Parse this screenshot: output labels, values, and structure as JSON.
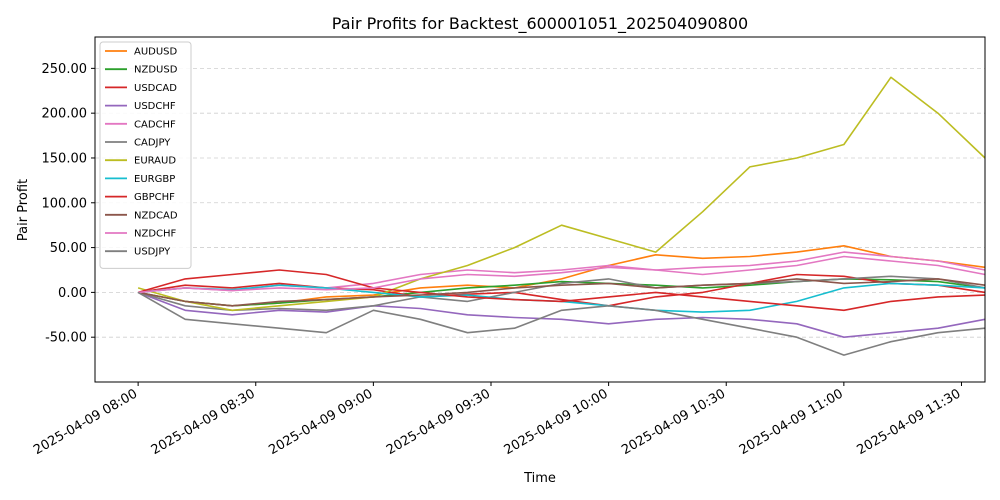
{
  "chart_data": {
    "type": "line",
    "title": "Pair Profits for Backtest_600001051_202504090800",
    "xlabel": "Time",
    "ylabel": "Pair Profit",
    "x_start": "2025-04-09 08:00",
    "x_end": "2025-04-09 11:36",
    "x_step_minutes": 12,
    "xlim_minutes": [
      -11,
      216
    ],
    "ylim": [
      -100,
      285
    ],
    "grid": "horizontal dashed",
    "legend_position": "top-left",
    "x_ticks": [
      {
        "minutes": 0,
        "label": "2025-04-09 08:00"
      },
      {
        "minutes": 30,
        "label": "2025-04-09 08:30"
      },
      {
        "minutes": 60,
        "label": "2025-04-09 09:00"
      },
      {
        "minutes": 90,
        "label": "2025-04-09 09:30"
      },
      {
        "minutes": 120,
        "label": "2025-04-09 10:00"
      },
      {
        "minutes": 150,
        "label": "2025-04-09 10:30"
      },
      {
        "minutes": 180,
        "label": "2025-04-09 11:00"
      },
      {
        "minutes": 210,
        "label": "2025-04-09 11:30"
      }
    ],
    "y_ticks": [
      {
        "value": -50,
        "label": "-50.00"
      },
      {
        "value": 0,
        "label": "0.00"
      },
      {
        "value": 50,
        "label": "50.00"
      },
      {
        "value": 100,
        "label": "100.00"
      },
      {
        "value": 150,
        "label": "150.00"
      },
      {
        "value": 200,
        "label": "200.00"
      },
      {
        "value": 250,
        "label": "250.00"
      }
    ],
    "series": [
      {
        "name": "AUDUSD",
        "color": "#ff7f0e",
        "values": [
          0,
          -10,
          -15,
          -12,
          -5,
          -3,
          5,
          8,
          5,
          15,
          30,
          42,
          38,
          40,
          45,
          52,
          40,
          35,
          28
        ]
      },
      {
        "name": "NZDUSD",
        "color": "#2ca02c",
        "values": [
          0,
          -10,
          -15,
          -12,
          -8,
          -5,
          0,
          5,
          8,
          12,
          10,
          8,
          5,
          8,
          12,
          15,
          14,
          12,
          5
        ]
      },
      {
        "name": "USDCAD",
        "color": "#d62728",
        "values": [
          0,
          8,
          5,
          10,
          5,
          3,
          -5,
          -2,
          0,
          -8,
          -15,
          -5,
          0,
          10,
          20,
          18,
          10,
          8,
          0
        ]
      },
      {
        "name": "USDCHF",
        "color": "#9467bd",
        "values": [
          0,
          -20,
          -25,
          -20,
          -22,
          -15,
          -18,
          -25,
          -28,
          -30,
          -35,
          -30,
          -28,
          -30,
          -35,
          -50,
          -45,
          -40,
          -30
        ]
      },
      {
        "name": "CADCHF",
        "color": "#e377c2",
        "values": [
          0,
          5,
          2,
          8,
          5,
          10,
          20,
          25,
          22,
          25,
          30,
          25,
          28,
          30,
          35,
          45,
          40,
          35,
          25
        ]
      },
      {
        "name": "CADJPY",
        "color": "#7f7f7f",
        "values": [
          0,
          -15,
          -20,
          -18,
          -20,
          -15,
          -5,
          -10,
          0,
          10,
          15,
          5,
          8,
          10,
          12,
          15,
          18,
          15,
          5
        ]
      },
      {
        "name": "EURAUD",
        "color": "#bcbd22",
        "values": [
          5,
          -10,
          -20,
          -15,
          -10,
          -5,
          15,
          30,
          50,
          75,
          60,
          45,
          90,
          140,
          150,
          165,
          240,
          200,
          150
        ]
      },
      {
        "name": "EURGBP",
        "color": "#17becf",
        "values": [
          0,
          5,
          3,
          8,
          5,
          0,
          -5,
          -3,
          -8,
          -10,
          -15,
          -20,
          -22,
          -20,
          -10,
          5,
          10,
          8,
          5
        ]
      },
      {
        "name": "GBPCHF",
        "color": "#d62728",
        "values": [
          0,
          15,
          20,
          25,
          20,
          5,
          0,
          -5,
          -8,
          -10,
          -5,
          0,
          -5,
          -10,
          -15,
          -20,
          -10,
          -5,
          -3
        ]
      },
      {
        "name": "NZDCAD",
        "color": "#8c564b",
        "values": [
          0,
          -10,
          -15,
          -10,
          -8,
          -5,
          -3,
          0,
          5,
          8,
          10,
          5,
          8,
          10,
          15,
          10,
          12,
          15,
          8
        ]
      },
      {
        "name": "NZDCHF",
        "color": "#e377c2",
        "values": [
          0,
          5,
          2,
          5,
          3,
          5,
          15,
          20,
          18,
          22,
          28,
          25,
          20,
          25,
          30,
          40,
          35,
          30,
          20
        ]
      },
      {
        "name": "USDJPY",
        "color": "#7f7f7f",
        "values": [
          0,
          -30,
          -35,
          -40,
          -45,
          -20,
          -30,
          -45,
          -40,
          -20,
          -15,
          -20,
          -30,
          -40,
          -50,
          -70,
          -55,
          -45,
          -40
        ]
      }
    ]
  }
}
